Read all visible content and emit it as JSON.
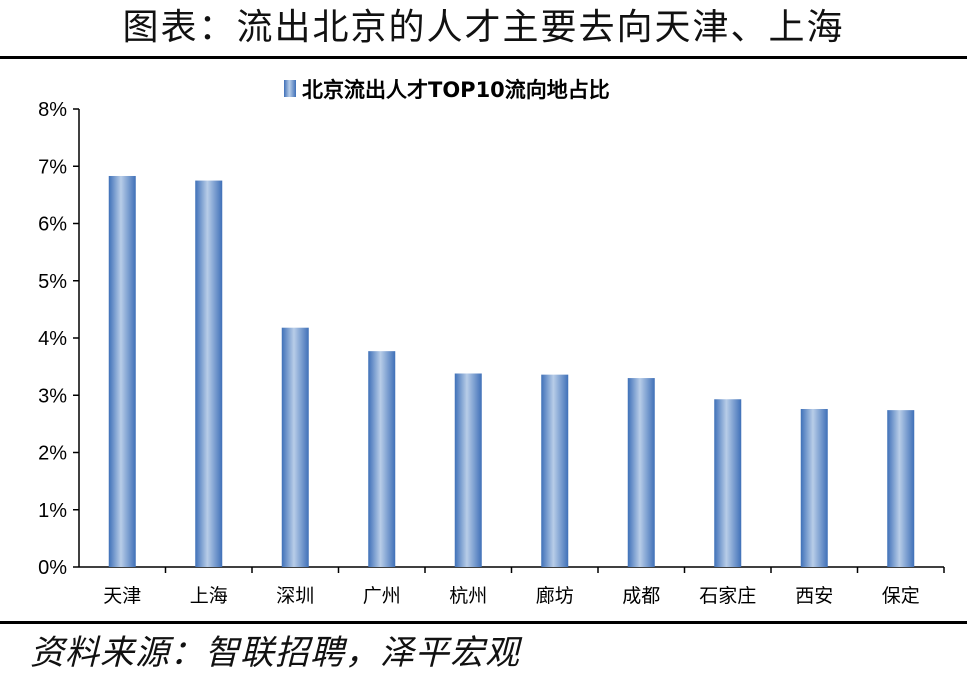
{
  "figure": {
    "title": "图表：流出北京的人才主要去向天津、上海",
    "source": "资料来源：智联招聘，泽平宏观"
  },
  "chart_data": {
    "type": "bar",
    "title": "北京流出人才TOP10流向地占比",
    "legend_position": "top",
    "categories": [
      "天津",
      "上海",
      "深圳",
      "广州",
      "杭州",
      "廊坊",
      "成都",
      "石家庄",
      "西安",
      "保定"
    ],
    "series": [
      {
        "name": "北京流出人才TOP10流向地占比",
        "values": [
          6.83,
          6.75,
          4.18,
          3.77,
          3.38,
          3.36,
          3.3,
          2.93,
          2.76,
          2.74
        ]
      }
    ],
    "ylim": [
      0,
      8
    ],
    "yticks": [
      "0%",
      "1%",
      "2%",
      "3%",
      "4%",
      "5%",
      "6%",
      "7%",
      "8%"
    ],
    "grid": false,
    "colors": {
      "bar_edge": "#3f70b8",
      "bar_center": "#b8cde8",
      "axis": "#000000"
    }
  }
}
